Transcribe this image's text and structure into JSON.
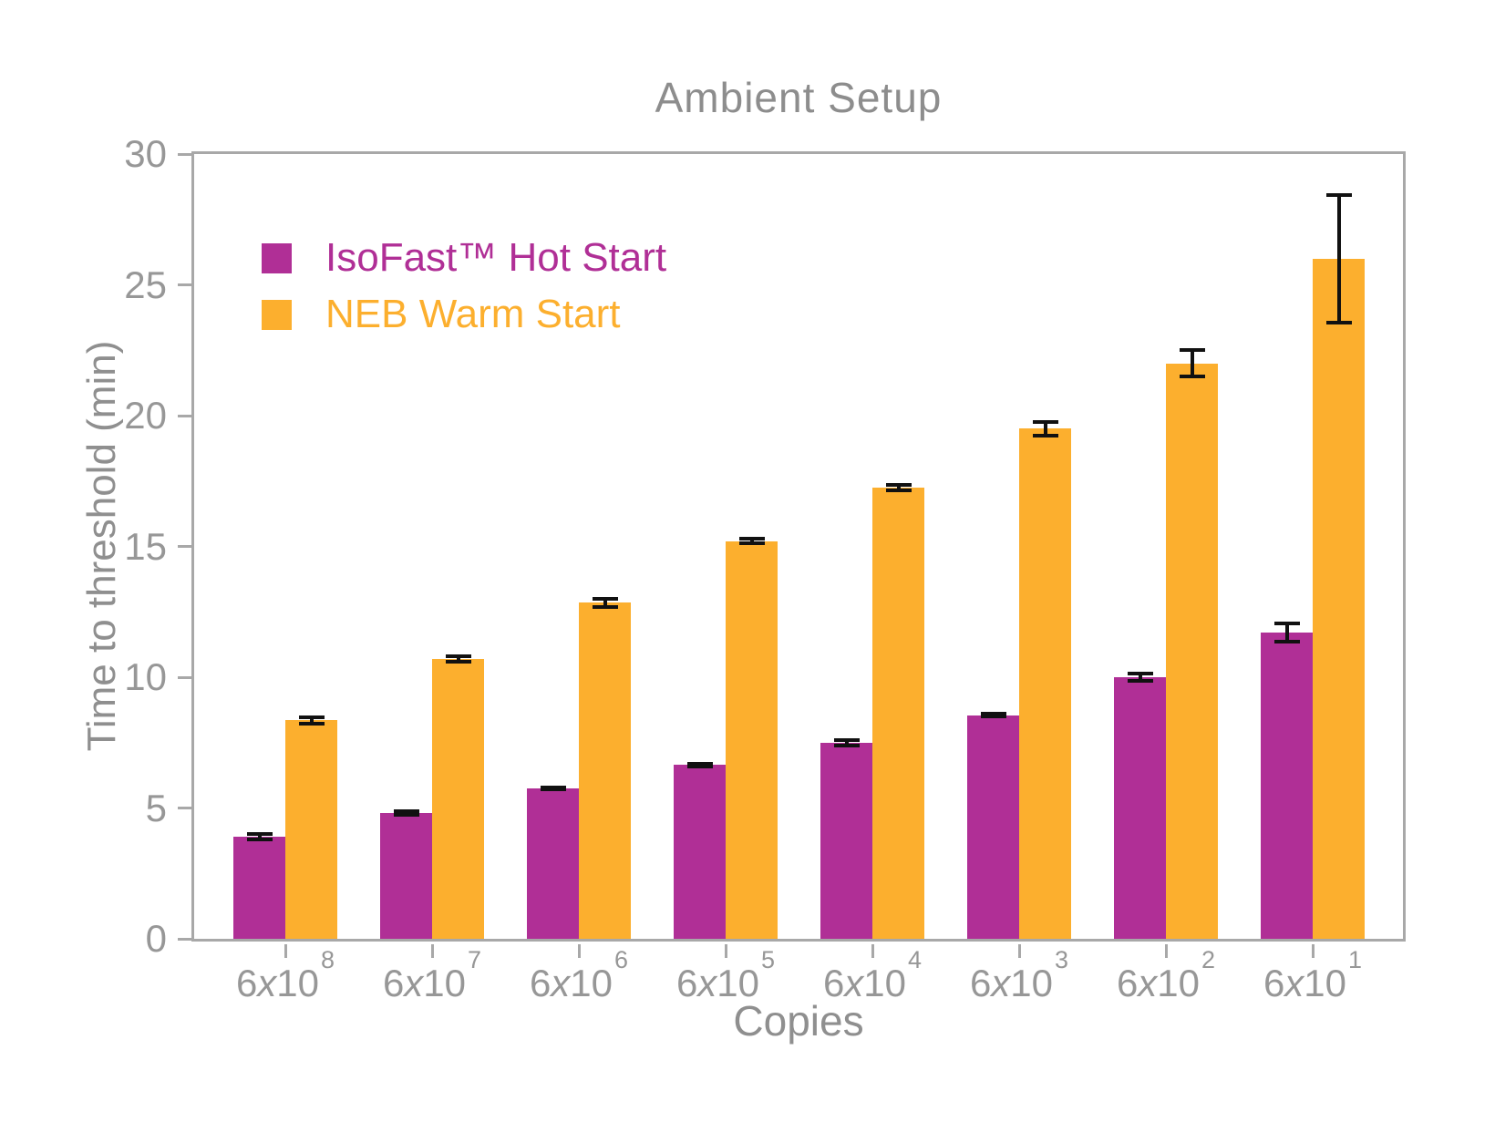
{
  "chart_data": {
    "type": "bar",
    "title": "Ambient Setup",
    "xlabel": "Copies",
    "ylabel": "Time to threshold (min)",
    "ylim": [
      0,
      30
    ],
    "yticks": [
      0,
      5,
      10,
      15,
      20,
      25,
      30
    ],
    "categories": [
      "6x10^8",
      "6x10^7",
      "6x10^6",
      "6x10^5",
      "6x10^4",
      "6x10^3",
      "6x10^2",
      "6x10^1"
    ],
    "grid": false,
    "legend_position": "upper left inside",
    "series": [
      {
        "name": "IsoFast™ Hot Start",
        "color": "#B02F96",
        "values": [
          3.9,
          4.8,
          5.75,
          6.65,
          7.5,
          8.55,
          10.0,
          11.7
        ],
        "errors": [
          0.1,
          0.07,
          0.05,
          0.05,
          0.1,
          0.05,
          0.15,
          0.35
        ]
      },
      {
        "name": "NEB Warm Start",
        "color": "#FCAF2E",
        "values": [
          8.35,
          10.7,
          12.85,
          15.2,
          17.25,
          19.5,
          22.0,
          26.0
        ],
        "errors": [
          0.12,
          0.1,
          0.15,
          0.08,
          0.1,
          0.25,
          0.5,
          2.45
        ]
      }
    ],
    "error_bar_color": "#111111",
    "axis_color": "#a8a8a8",
    "text_color": "#8f8f8f"
  }
}
